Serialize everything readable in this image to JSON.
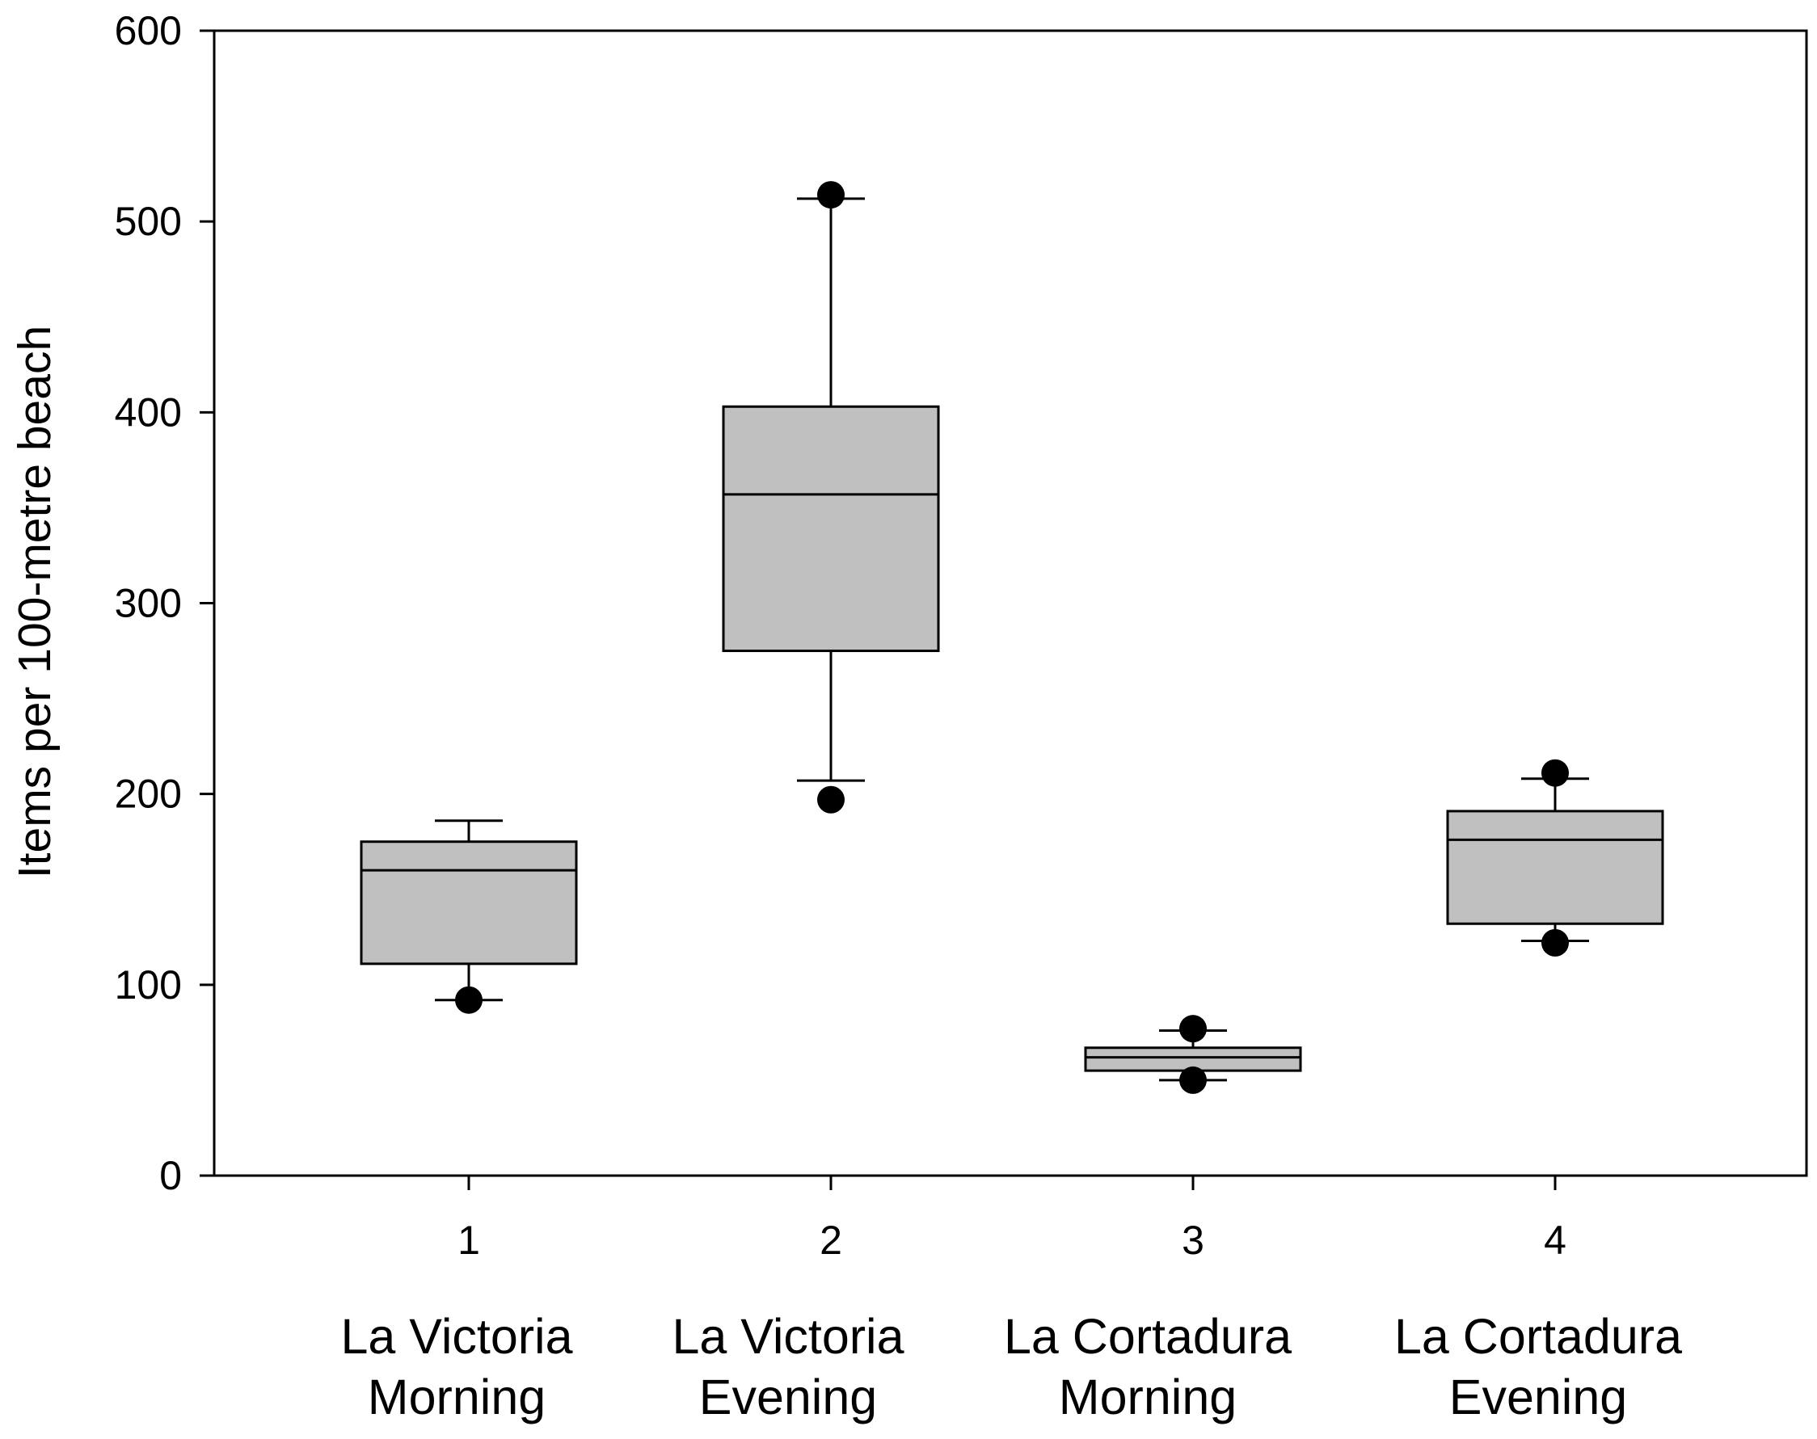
{
  "chart_data": {
    "type": "box",
    "title": "",
    "xlabel": "",
    "ylabel": "Items per 100-metre beach",
    "ylim": [
      0,
      600
    ],
    "yticks": [
      0,
      100,
      200,
      300,
      400,
      500,
      600
    ],
    "grid": false,
    "legend": "none",
    "colors": {
      "box_fill": "#c0c0c0",
      "line": "#000000",
      "outlier": "#000000"
    },
    "categories": [
      {
        "tick": "1",
        "label_line1": "La Victoria",
        "label_line2": "Morning"
      },
      {
        "tick": "2",
        "label_line1": "La Victoria",
        "label_line2": "Evening"
      },
      {
        "tick": "3",
        "label_line1": "La Cortadura",
        "label_line2": "Morning"
      },
      {
        "tick": "4",
        "label_line1": "La Cortadura",
        "label_line2": "Evening"
      }
    ],
    "boxes": [
      {
        "q1": 111,
        "median": 160,
        "q3": 175,
        "whisker_low": 92,
        "whisker_high": 186,
        "outliers": [
          92
        ]
      },
      {
        "q1": 275,
        "median": 357,
        "q3": 403,
        "whisker_low": 207,
        "whisker_high": 512,
        "outliers": [
          514,
          197
        ]
      },
      {
        "q1": 55,
        "median": 62,
        "q3": 67,
        "whisker_low": 50,
        "whisker_high": 76,
        "outliers": [
          77,
          50
        ]
      },
      {
        "q1": 132,
        "median": 176,
        "q3": 191,
        "whisker_low": 123,
        "whisker_high": 208,
        "outliers": [
          211,
          122
        ]
      }
    ]
  }
}
